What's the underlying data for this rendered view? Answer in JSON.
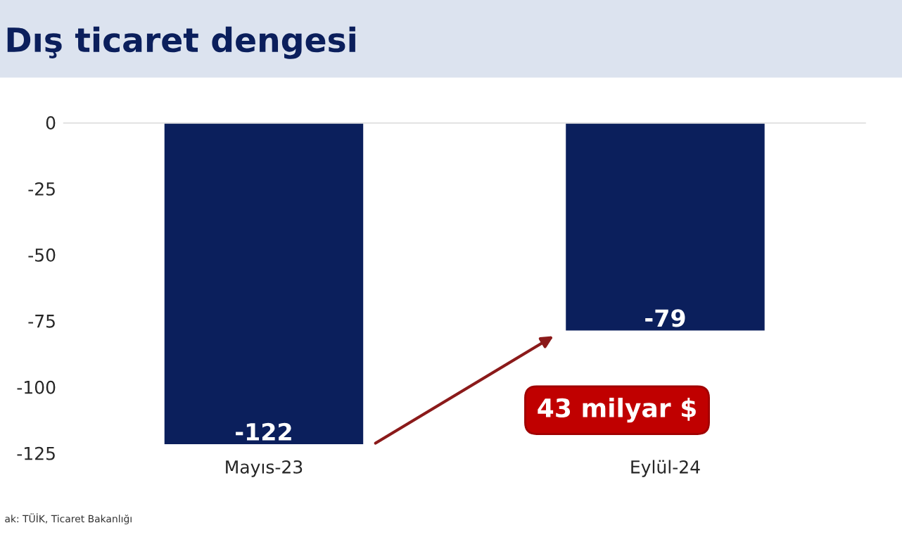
{
  "chart_data": {
    "type": "bar",
    "title": "Dış ticaret dengesi",
    "categories": [
      "Mayıs-23",
      "Eylül-24"
    ],
    "series": [
      {
        "color": "#0b1f5c",
        "values": [
          -122,
          -79
        ]
      }
    ],
    "ylim": [
      -125,
      0
    ],
    "yticks": [
      0,
      -25,
      -50,
      -75,
      -100,
      -125
    ],
    "data_labels": true,
    "grid": false,
    "legend": false,
    "annotations": [
      "43 milyar $",
      "ak: TÜİK, Ticaret Bakanlığı"
    ]
  }
}
